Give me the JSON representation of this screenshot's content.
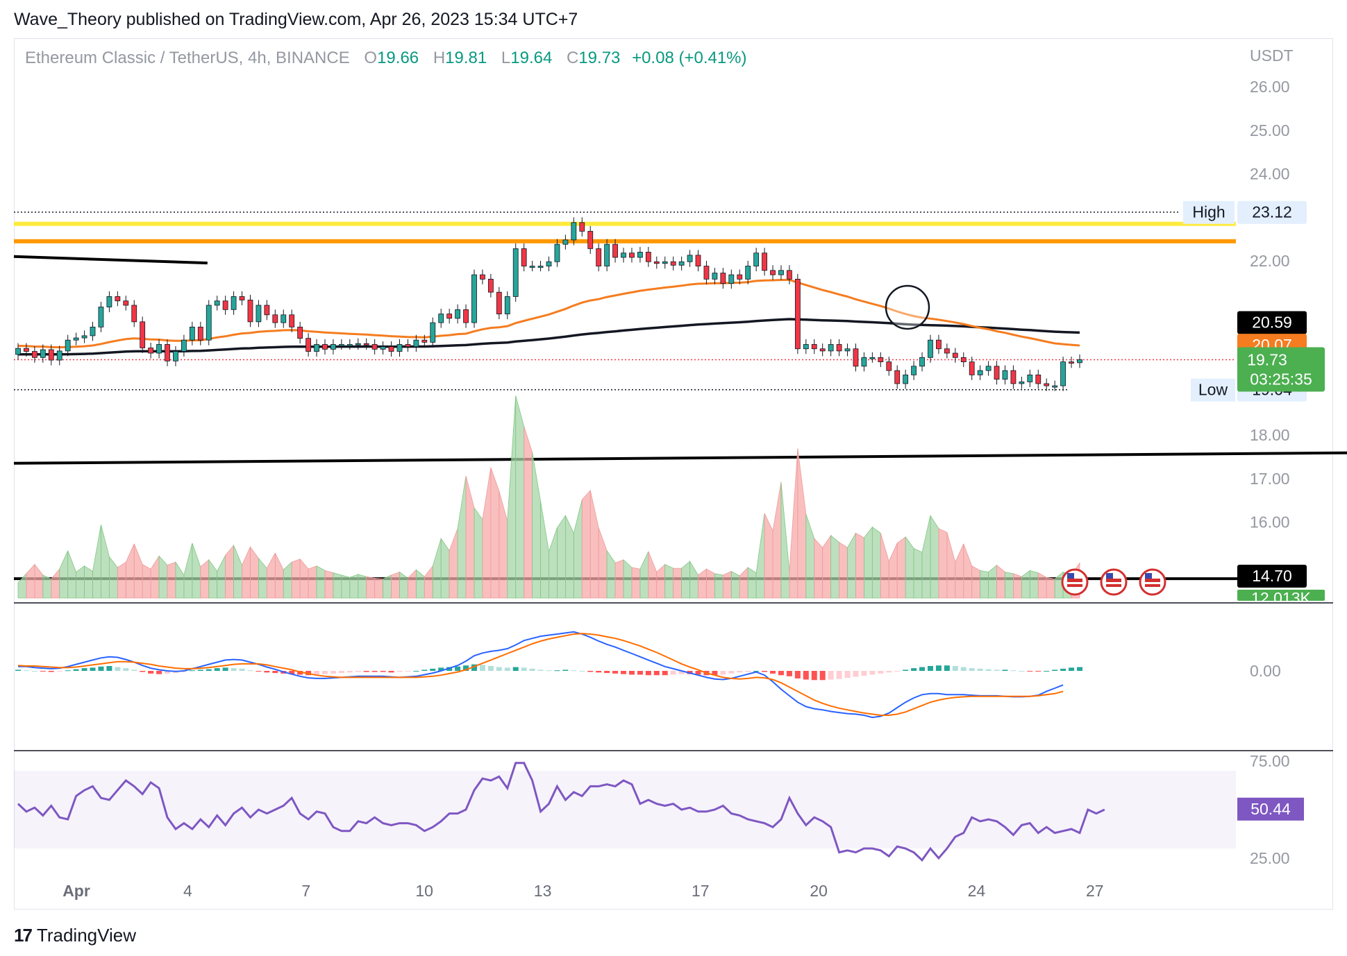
{
  "header": {
    "published": "Wave_Theory published on TradingView.com, Apr 26, 2023 15:34 UTC+7"
  },
  "legend": {
    "symbol": "Ethereum Classic / TetherUS, 4h, BINANCE",
    "o_label": "O",
    "o": "19.66",
    "h_label": "H",
    "h": "19.81",
    "l_label": "L",
    "l": "19.64",
    "c_label": "C",
    "c": "19.73",
    "change": "+0.08 (+0.41%)"
  },
  "footer": {
    "brand": "TradingView",
    "logo_icon": "tradingview-logo-icon"
  },
  "chart_data": {
    "type": "candlestick",
    "price_axis": {
      "unit": "USDT",
      "ticks": [
        "26.00",
        "25.00",
        "24.00",
        "22.00",
        "18.00",
        "17.00",
        "16.00"
      ],
      "range": [
        14.0,
        26.8
      ]
    },
    "date_axis": {
      "ticks": [
        {
          "label": "Apr",
          "day": 1
        },
        {
          "label": "4",
          "day": 4
        },
        {
          "label": "7",
          "day": 7
        },
        {
          "label": "10",
          "day": 10
        },
        {
          "label": "13",
          "day": 13
        },
        {
          "label": "17",
          "day": 17
        },
        {
          "label": "20",
          "day": 20
        },
        {
          "label": "24",
          "day": 24
        },
        {
          "label": "27",
          "day": 27
        }
      ]
    },
    "badges": [
      {
        "label": "High",
        "value": "23.12",
        "price": 23.12
      },
      {
        "label": "Low",
        "value": "19.04",
        "price": 19.04
      },
      {
        "value": "20.59",
        "price": 20.59,
        "color": "#000000"
      },
      {
        "value": "20.07",
        "price": 20.07,
        "color": "#f57c1f"
      },
      {
        "value": "19.73",
        "countdown": "03:25:35",
        "price": 19.73,
        "color": "#4caf50"
      },
      {
        "value": "14.70",
        "price": 14.7,
        "color": "#000000"
      },
      {
        "value": "12.013K",
        "color": "#4caf50"
      }
    ],
    "horizontal_levels": [
      {
        "price": 22.85,
        "color": "#ffeb3b"
      },
      {
        "price": 22.45,
        "color": "#ff9800"
      }
    ],
    "trend_lines": [
      {
        "from": [
          0.0,
          22.1
        ],
        "to": [
          3.5,
          21.95
        ],
        "color": "#000000"
      },
      {
        "from": [
          0.0,
          17.35
        ],
        "to": [
          41.0,
          17.65
        ],
        "color": "#000000"
      },
      {
        "from": [
          0.0,
          14.7
        ],
        "to": [
          55.0,
          14.7
        ],
        "color": "#000000"
      }
    ],
    "candles": [
      [
        19.85,
        19.99
      ],
      [
        19.99,
        19.92
      ],
      [
        19.92,
        19.78
      ],
      [
        19.78,
        19.96
      ],
      [
        19.96,
        19.72
      ],
      [
        19.72,
        19.93
      ],
      [
        19.93,
        20.18
      ],
      [
        20.18,
        20.23
      ],
      [
        20.23,
        20.28
      ],
      [
        20.28,
        20.48
      ],
      [
        20.48,
        20.94
      ],
      [
        20.94,
        21.18
      ],
      [
        21.18,
        21.08
      ],
      [
        21.08,
        20.98
      ],
      [
        20.98,
        20.6
      ],
      [
        20.6,
        20.0
      ],
      [
        20.0,
        19.88
      ],
      [
        19.88,
        20.08
      ],
      [
        20.08,
        19.7
      ],
      [
        19.7,
        19.92
      ],
      [
        19.92,
        20.18
      ],
      [
        20.18,
        20.48
      ],
      [
        20.48,
        20.18
      ],
      [
        20.18,
        20.98
      ],
      [
        20.98,
        21.08
      ],
      [
        21.08,
        20.88
      ],
      [
        20.88,
        21.18
      ],
      [
        21.18,
        21.1
      ],
      [
        21.1,
        20.6
      ],
      [
        20.6,
        20.98
      ],
      [
        20.98,
        20.76
      ],
      [
        20.76,
        20.58
      ],
      [
        20.58,
        20.76
      ],
      [
        20.76,
        20.48
      ],
      [
        20.48,
        20.22
      ],
      [
        20.22,
        19.92
      ],
      [
        19.92,
        20.08
      ],
      [
        20.08,
        19.97
      ],
      [
        19.97,
        20.08
      ],
      [
        20.08,
        20.08
      ],
      [
        20.08,
        20.08
      ],
      [
        20.08,
        20.1
      ],
      [
        20.1,
        20.08
      ],
      [
        20.08,
        19.97
      ],
      [
        19.97,
        20.03
      ],
      [
        20.03,
        19.92
      ],
      [
        19.92,
        20.08
      ],
      [
        20.08,
        20.03
      ],
      [
        20.03,
        20.18
      ],
      [
        20.18,
        20.13
      ],
      [
        20.13,
        20.58
      ],
      [
        20.58,
        20.78
      ],
      [
        20.78,
        20.68
      ],
      [
        20.68,
        20.88
      ],
      [
        20.88,
        20.58
      ],
      [
        20.58,
        21.68
      ],
      [
        21.68,
        21.58
      ],
      [
        21.58,
        21.28
      ],
      [
        21.28,
        20.78
      ],
      [
        20.78,
        21.18
      ],
      [
        21.18,
        22.28
      ],
      [
        22.28,
        21.88
      ],
      [
        21.88,
        21.88
      ],
      [
        21.88,
        21.88
      ],
      [
        21.88,
        21.98
      ],
      [
        21.98,
        22.38
      ],
      [
        22.38,
        22.48
      ],
      [
        22.48,
        22.88
      ],
      [
        22.88,
        22.68
      ],
      [
        22.68,
        22.28
      ],
      [
        22.28,
        21.88
      ],
      [
        21.88,
        22.38
      ],
      [
        22.38,
        22.08
      ],
      [
        22.08,
        22.18
      ],
      [
        22.18,
        22.08
      ],
      [
        22.08,
        22.2
      ],
      [
        22.2,
        21.98
      ],
      [
        21.98,
        21.94
      ],
      [
        21.94,
        21.98
      ],
      [
        21.98,
        21.9
      ],
      [
        21.9,
        21.98
      ],
      [
        21.98,
        22.13
      ],
      [
        22.13,
        21.88
      ],
      [
        21.88,
        21.58
      ],
      [
        21.58,
        21.72
      ],
      [
        21.72,
        21.48
      ],
      [
        21.48,
        21.68
      ],
      [
        21.68,
        21.58
      ],
      [
        21.58,
        21.88
      ],
      [
        21.88,
        22.18
      ],
      [
        22.18,
        21.78
      ],
      [
        21.78,
        21.68
      ],
      [
        21.68,
        21.78
      ],
      [
        21.78,
        21.58
      ],
      [
        21.58,
        19.98
      ],
      [
        19.98,
        20.08
      ],
      [
        20.08,
        19.98
      ],
      [
        19.98,
        19.93
      ],
      [
        19.93,
        20.08
      ],
      [
        20.08,
        19.93
      ],
      [
        19.93,
        19.98
      ],
      [
        19.98,
        19.58
      ],
      [
        19.58,
        19.78
      ],
      [
        19.78,
        19.78
      ],
      [
        19.78,
        19.68
      ],
      [
        19.68,
        19.48
      ],
      [
        19.48,
        19.18
      ],
      [
        19.18,
        19.38
      ],
      [
        19.38,
        19.58
      ],
      [
        19.58,
        19.78
      ],
      [
        19.78,
        20.18
      ],
      [
        20.18,
        19.98
      ],
      [
        19.98,
        19.88
      ],
      [
        19.88,
        19.78
      ],
      [
        19.78,
        19.68
      ],
      [
        19.68,
        19.38
      ],
      [
        19.38,
        19.48
      ],
      [
        19.48,
        19.58
      ],
      [
        19.58,
        19.28
      ],
      [
        19.28,
        19.48
      ],
      [
        19.48,
        19.18
      ],
      [
        19.18,
        19.22
      ],
      [
        19.22,
        19.38
      ],
      [
        19.38,
        19.18
      ],
      [
        19.18,
        19.13
      ],
      [
        19.13,
        19.13
      ],
      [
        19.13,
        19.68
      ],
      [
        19.68,
        19.66
      ],
      [
        19.66,
        19.73
      ]
    ],
    "ema_50_last": 20.07,
    "ma_200_last": 20.59,
    "volume": {
      "last_value": "12.013K",
      "bars": [
        20,
        32,
        44,
        30,
        25,
        38,
        62,
        34,
        42,
        35,
        96,
        54,
        40,
        47,
        71,
        44,
        38,
        55,
        43,
        47,
        30,
        72,
        41,
        50,
        35,
        56,
        69,
        43,
        67,
        52,
        39,
        59,
        37,
        47,
        51,
        38,
        42,
        36,
        33,
        30,
        27,
        31,
        28,
        26,
        25,
        30,
        34,
        26,
        37,
        28,
        42,
        78,
        62,
        91,
        160,
        118,
        103,
        171,
        140,
        101,
        265,
        225,
        191,
        127,
        61,
        92,
        108,
        85,
        129,
        141,
        92,
        62,
        46,
        50,
        40,
        38,
        61,
        34,
        44,
        39,
        39,
        48,
        30,
        38,
        32,
        30,
        35,
        29,
        40,
        33,
        111,
        88,
        152,
        35,
        196,
        110,
        78,
        66,
        82,
        73,
        66,
        85,
        79,
        93,
        85,
        48,
        72,
        80,
        65,
        60,
        108,
        91,
        86,
        47,
        71,
        42,
        36,
        34,
        43,
        34,
        32,
        28,
        36,
        33,
        27,
        25,
        34,
        30,
        46
      ],
      "ylim": [
        0,
        300
      ]
    },
    "macd": {
      "zero_label": "0.00",
      "hist": [
        0.02,
        0.01,
        0.0,
        -0.01,
        -0.02,
        -0.01,
        0.01,
        0.03,
        0.05,
        0.06,
        0.08,
        0.09,
        0.07,
        0.05,
        0.02,
        -0.02,
        -0.05,
        -0.06,
        -0.05,
        -0.04,
        -0.02,
        0.01,
        0.02,
        0.03,
        0.05,
        0.06,
        0.05,
        0.04,
        0.01,
        -0.01,
        -0.03,
        -0.04,
        -0.05,
        -0.06,
        -0.07,
        -0.08,
        -0.07,
        -0.06,
        -0.05,
        -0.04,
        -0.03,
        -0.02,
        -0.02,
        -0.02,
        -0.02,
        -0.03,
        -0.02,
        -0.01,
        0.0,
        0.02,
        0.04,
        0.06,
        0.07,
        0.08,
        0.1,
        0.12,
        0.11,
        0.09,
        0.07,
        0.06,
        0.07,
        0.06,
        0.04,
        0.02,
        0.01,
        0.01,
        0.02,
        0.01,
        0.0,
        -0.02,
        -0.03,
        -0.04,
        -0.05,
        -0.06,
        -0.07,
        -0.07,
        -0.08,
        -0.08,
        -0.08,
        -0.07,
        -0.06,
        -0.06,
        -0.07,
        -0.08,
        -0.08,
        -0.07,
        -0.05,
        -0.03,
        -0.02,
        0.0,
        -0.02,
        -0.05,
        -0.08,
        -0.1,
        -0.14,
        -0.16,
        -0.17,
        -0.17,
        -0.16,
        -0.15,
        -0.13,
        -0.11,
        -0.09,
        -0.07,
        -0.05,
        -0.03,
        -0.01,
        0.02,
        0.05,
        0.07,
        0.09,
        0.1,
        0.1,
        0.09,
        0.07,
        0.05,
        0.04,
        0.03,
        0.02,
        0.02,
        0.01,
        0.0,
        -0.01,
        -0.01,
        0.0,
        0.02,
        0.04,
        0.06,
        0.07
      ],
      "macd_line": [
        0.08,
        0.08,
        0.06,
        0.05,
        0.04,
        0.05,
        0.08,
        0.12,
        0.16,
        0.2,
        0.24,
        0.26,
        0.25,
        0.21,
        0.16,
        0.1,
        0.05,
        0.02,
        0.0,
        -0.01,
        0.0,
        0.04,
        0.08,
        0.12,
        0.16,
        0.2,
        0.21,
        0.2,
        0.16,
        0.12,
        0.07,
        0.03,
        -0.02,
        -0.06,
        -0.1,
        -0.13,
        -0.14,
        -0.14,
        -0.13,
        -0.12,
        -0.11,
        -0.1,
        -0.1,
        -0.1,
        -0.1,
        -0.11,
        -0.12,
        -0.11,
        -0.1,
        -0.07,
        -0.04,
        0.0,
        0.05,
        0.1,
        0.18,
        0.28,
        0.33,
        0.36,
        0.38,
        0.41,
        0.48,
        0.56,
        0.6,
        0.64,
        0.66,
        0.68,
        0.7,
        0.72,
        0.68,
        0.62,
        0.55,
        0.49,
        0.44,
        0.38,
        0.32,
        0.26,
        0.2,
        0.14,
        0.08,
        0.04,
        0.0,
        -0.04,
        -0.08,
        -0.12,
        -0.15,
        -0.16,
        -0.14,
        -0.1,
        -0.06,
        -0.02,
        -0.08,
        -0.2,
        -0.34,
        -0.46,
        -0.58,
        -0.66,
        -0.7,
        -0.72,
        -0.75,
        -0.77,
        -0.79,
        -0.8,
        -0.82,
        -0.86,
        -0.84,
        -0.78,
        -0.68,
        -0.58,
        -0.5,
        -0.44,
        -0.42,
        -0.42,
        -0.44,
        -0.44,
        -0.44,
        -0.45,
        -0.46,
        -0.46,
        -0.46,
        -0.47,
        -0.48,
        -0.48,
        -0.47,
        -0.45,
        -0.38,
        -0.32,
        -0.26
      ],
      "signal_line": [
        0.1,
        0.09,
        0.09,
        0.08,
        0.07,
        0.06,
        0.06,
        0.07,
        0.09,
        0.11,
        0.13,
        0.15,
        0.17,
        0.17,
        0.16,
        0.14,
        0.12,
        0.09,
        0.07,
        0.05,
        0.04,
        0.04,
        0.05,
        0.06,
        0.08,
        0.1,
        0.12,
        0.13,
        0.13,
        0.13,
        0.11,
        0.08,
        0.05,
        0.02,
        -0.02,
        -0.05,
        -0.08,
        -0.1,
        -0.11,
        -0.12,
        -0.12,
        -0.12,
        -0.12,
        -0.12,
        -0.12,
        -0.12,
        -0.12,
        -0.12,
        -0.12,
        -0.11,
        -0.1,
        -0.08,
        -0.05,
        -0.02,
        0.02,
        0.08,
        0.14,
        0.2,
        0.26,
        0.32,
        0.38,
        0.44,
        0.5,
        0.55,
        0.59,
        0.62,
        0.65,
        0.68,
        0.69,
        0.68,
        0.66,
        0.63,
        0.6,
        0.56,
        0.51,
        0.46,
        0.4,
        0.34,
        0.27,
        0.2,
        0.13,
        0.07,
        0.02,
        -0.04,
        -0.08,
        -0.12,
        -0.14,
        -0.15,
        -0.14,
        -0.12,
        -0.13,
        -0.16,
        -0.22,
        -0.3,
        -0.38,
        -0.46,
        -0.54,
        -0.6,
        -0.65,
        -0.69,
        -0.72,
        -0.75,
        -0.78,
        -0.8,
        -0.82,
        -0.82,
        -0.8,
        -0.76,
        -0.7,
        -0.64,
        -0.58,
        -0.54,
        -0.51,
        -0.49,
        -0.48,
        -0.47,
        -0.47,
        -0.47,
        -0.47,
        -0.47,
        -0.47,
        -0.47,
        -0.47,
        -0.46,
        -0.44,
        -0.42,
        -0.38
      ]
    },
    "rsi": {
      "ticks": [
        "75.00",
        "25.00"
      ],
      "band": [
        30,
        70
      ],
      "last_value": "50.44",
      "values": [
        53,
        49,
        51,
        47,
        52,
        46,
        45,
        57,
        60,
        62,
        56,
        55,
        60,
        65,
        62,
        58,
        64,
        61,
        46,
        40,
        43,
        40,
        45,
        41,
        47,
        42,
        48,
        51,
        46,
        50,
        48,
        50,
        52,
        56,
        48,
        45,
        49,
        48,
        41,
        39,
        39,
        44,
        43,
        46,
        43,
        42,
        43,
        43,
        42,
        39,
        41,
        44,
        48,
        48,
        50,
        60,
        66,
        65,
        67,
        61,
        74,
        74,
        65,
        49,
        53,
        62,
        55,
        59,
        57,
        62,
        62,
        63,
        62,
        65,
        63,
        53,
        55,
        53,
        52,
        53,
        50,
        51,
        49,
        49,
        50,
        52,
        48,
        47,
        45,
        44,
        43,
        41,
        45,
        56,
        48,
        42,
        46,
        44,
        41,
        28,
        29,
        28,
        30,
        30,
        29,
        26,
        31,
        30,
        28,
        24,
        30,
        25,
        30,
        36,
        38,
        46,
        44,
        45,
        44,
        41,
        37,
        42,
        43,
        38,
        41,
        38,
        39,
        40,
        38,
        50,
        48,
        50
      ]
    }
  }
}
